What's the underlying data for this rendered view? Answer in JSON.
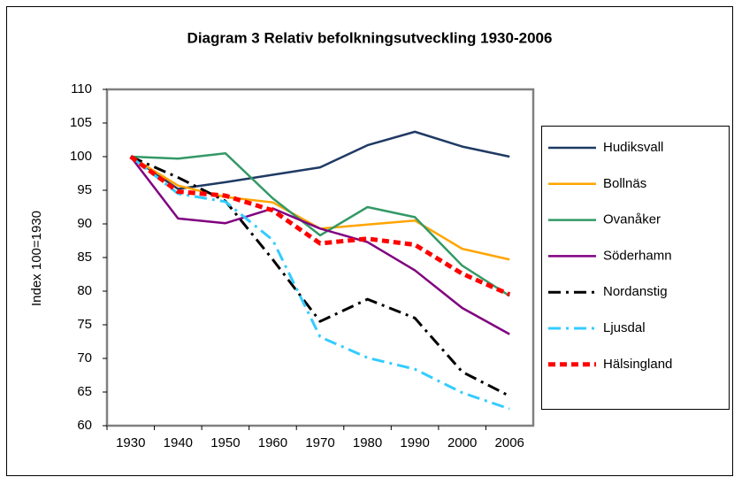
{
  "chart_data": {
    "type": "line",
    "title": "Diagram 3  Relativ befolkningsutveckling 1930-2006",
    "y_label": "Index 100=1930",
    "categories": [
      "1930",
      "1940",
      "1950",
      "1960",
      "1970",
      "1980",
      "1990",
      "2000",
      "2006"
    ],
    "ylim": [
      60,
      110
    ],
    "yticks": [
      60,
      65,
      70,
      75,
      80,
      85,
      90,
      95,
      100,
      105,
      110
    ],
    "legend": "right",
    "series": [
      {
        "name": "Hudiksvall",
        "color": "#1f3a64",
        "style": "solid",
        "values": [
          100,
          95.2,
          96.2,
          97.3,
          98.4,
          101.7,
          103.7,
          101.5,
          100
        ]
      },
      {
        "name": "Bollnäs",
        "color": "#ffa500",
        "style": "solid",
        "values": [
          100,
          95.7,
          94,
          93.2,
          89.3,
          89.9,
          90.5,
          86.3,
          84.7
        ]
      },
      {
        "name": "Ovanåker",
        "color": "#339966",
        "style": "solid",
        "values": [
          100,
          99.7,
          100.5,
          93.8,
          88.3,
          92.5,
          91,
          83.8,
          79.3
        ]
      },
      {
        "name": "Söderhamn",
        "color": "#800080",
        "style": "solid",
        "values": [
          100,
          90.8,
          90.1,
          92.3,
          89.3,
          87.3,
          83.1,
          77.5,
          73.6
        ]
      },
      {
        "name": "Nordanstig",
        "color": "#000000",
        "style": "dashdot",
        "values": [
          100,
          96.9,
          93.4,
          84.7,
          75.5,
          78.8,
          76,
          68,
          64.4
        ]
      },
      {
        "name": "Ljusdal",
        "color": "#33ccff",
        "style": "dashdot",
        "values": [
          100,
          94.5,
          93.3,
          87.6,
          73.2,
          70.1,
          68.4,
          64.9,
          62.5
        ]
      },
      {
        "name": "Hälsingland",
        "color": "#ff0000",
        "style": "dashed",
        "values": [
          100,
          94.8,
          94.2,
          92,
          87.1,
          87.8,
          86.9,
          82.6,
          79.5
        ]
      }
    ]
  }
}
